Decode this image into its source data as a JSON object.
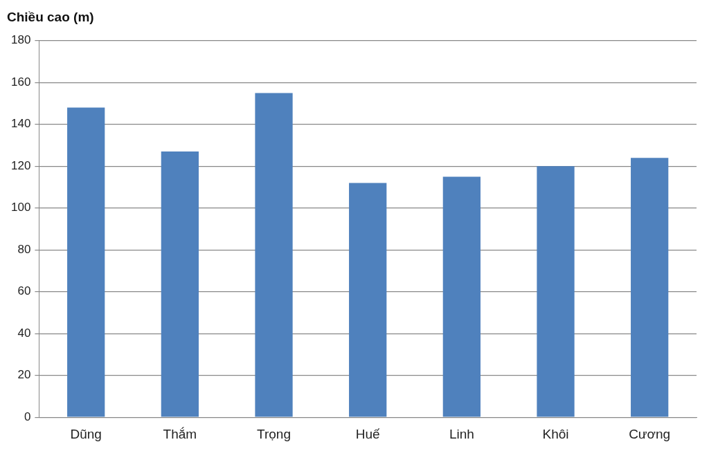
{
  "chart_data": {
    "type": "bar",
    "ylabel": "Chiều cao (m)",
    "categories": [
      "Dũng",
      "Thắm",
      "Trọng",
      "Huế",
      "Linh",
      "Khôi",
      "Cương"
    ],
    "values": [
      148,
      127,
      155,
      112,
      115,
      120,
      124
    ],
    "color": "#4f81bd",
    "ylim": [
      0,
      180
    ],
    "yticks": [
      0,
      20,
      40,
      60,
      80,
      100,
      120,
      140,
      160,
      180
    ],
    "grid": "y"
  }
}
